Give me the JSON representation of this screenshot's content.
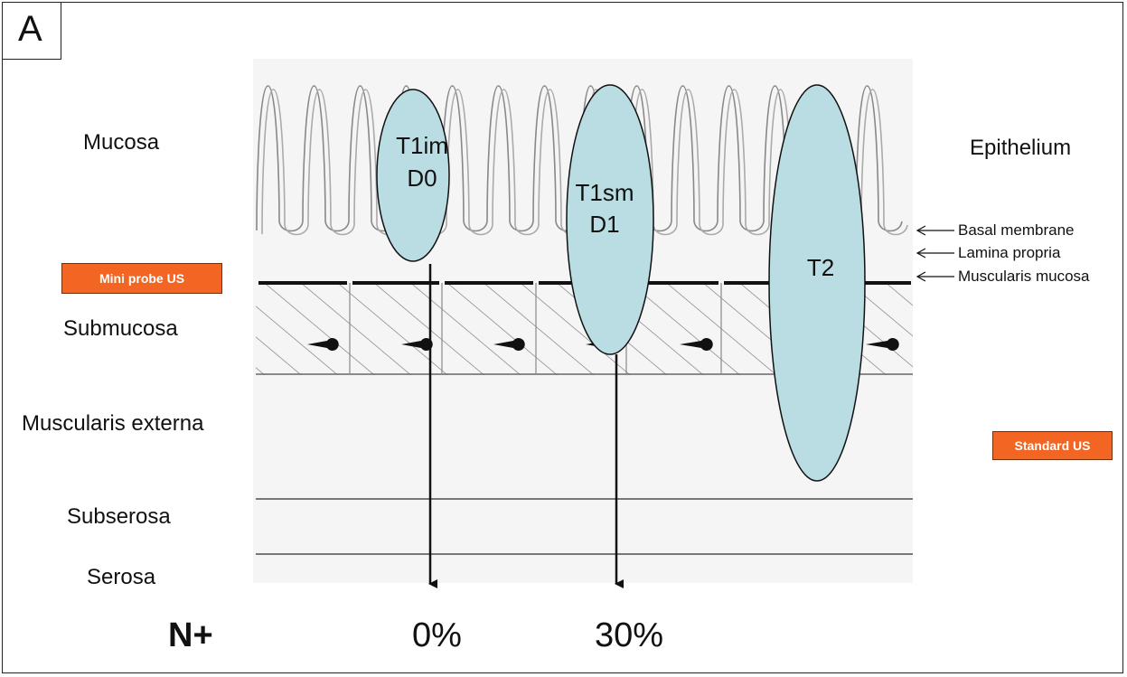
{
  "panel_label": "A",
  "layers": {
    "mucosa": "Mucosa",
    "submucosa": "Submucosa",
    "muscularis_externa": "Muscularis externa",
    "subserosa": "Subserosa",
    "serosa": "Serosa"
  },
  "structures": {
    "epithelium": "Epithelium",
    "basal_membrane": "Basal membrane",
    "lamina_propria": "Lamina propria",
    "muscularis_mucosa": "Muscularis  mucosa"
  },
  "badges": {
    "mini_probe": "Mini probe US",
    "standard": "Standard US"
  },
  "tumors": [
    {
      "line1": "T1im",
      "line2": "D0"
    },
    {
      "line1": "T1sm",
      "line2": "D1"
    },
    {
      "line1": "T2",
      "line2": ""
    }
  ],
  "node_metastasis": {
    "label": "N+",
    "values": [
      "0%",
      "30%"
    ]
  },
  "colors": {
    "tumor_fill": "#b9dde2",
    "badge_fill": "#f26522"
  }
}
